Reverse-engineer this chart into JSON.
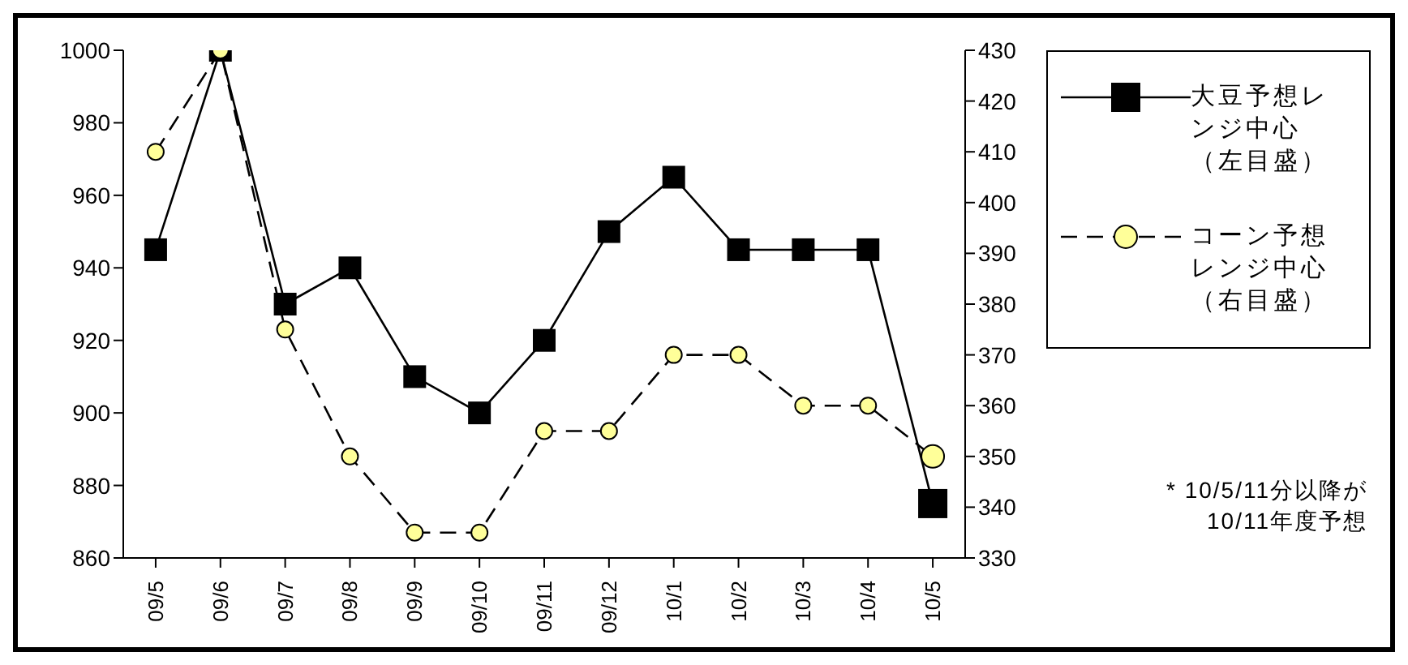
{
  "chart_data": {
    "type": "line",
    "categories": [
      "09/5",
      "09/6",
      "09/7",
      "09/8",
      "09/9",
      "09/10",
      "09/11",
      "09/12",
      "10/1",
      "10/2",
      "10/3",
      "10/4",
      "10/5"
    ],
    "series": [
      {
        "name": "大豆予想レンジ中心（左目盛）",
        "color": "#000000",
        "marker": "square",
        "line_style": "solid",
        "values": [
          945,
          1000,
          930,
          940,
          910,
          900,
          920,
          950,
          965,
          945,
          945,
          945,
          875
        ]
      },
      {
        "name": "コーン予想レンジ中心（右目盛）",
        "color": "#ffff99",
        "marker": "circle",
        "line_style": "dashed",
        "axis": "y2",
        "values": [
          410,
          430,
          375,
          350,
          335,
          335,
          355,
          355,
          370,
          370,
          360,
          360,
          350
        ]
      }
    ],
    "ylim": [
      860,
      1000
    ],
    "yticks": [
      860,
      880,
      900,
      920,
      940,
      960,
      980,
      1000
    ],
    "y2lim": [
      330,
      430
    ],
    "y2ticks": [
      330,
      340,
      350,
      360,
      370,
      380,
      390,
      400,
      410,
      420,
      430
    ],
    "grid": false,
    "legend": "right",
    "annotations": [
      "* 10/5/11分以降が\n10/11年度予想"
    ]
  }
}
